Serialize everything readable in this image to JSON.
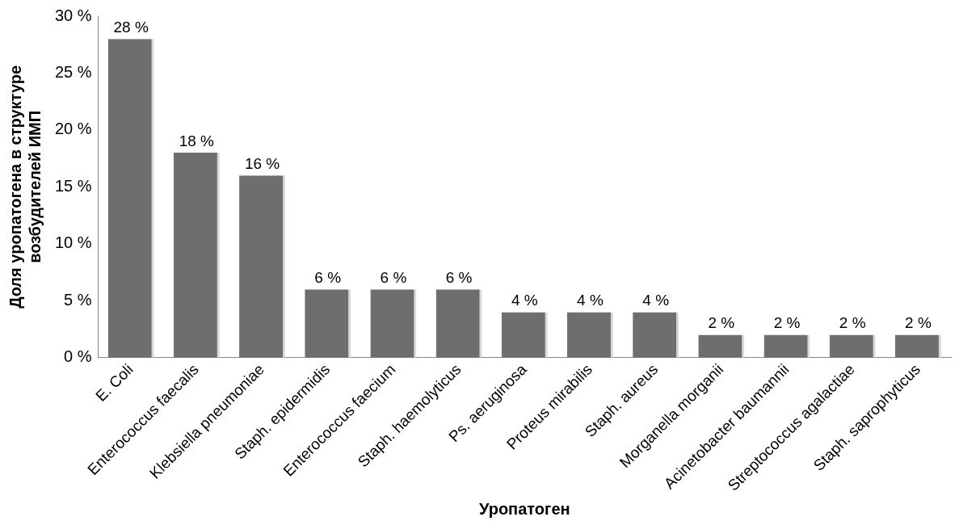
{
  "chart_data": {
    "type": "bar",
    "xlabel": "Уропатоген",
    "ylabel": "Доля уропатогена в структуре возбудителей ИМП",
    "categories": [
      "E. Coli",
      "Enterococcus faecalis",
      "Klebsiella pneumoniae",
      "Staph. epidermidis",
      "Enterococcus faecium",
      "Staph. haemolyticus",
      "Ps. aeruginosa",
      "Proteus mirabilis",
      "Staph. aureus",
      "Morganella morganii",
      "Acinetobacter baumannii",
      "Streptococcus agalactiae",
      "Staph. saprophyticus"
    ],
    "values": [
      28,
      18,
      16,
      6,
      6,
      6,
      4,
      4,
      4,
      2,
      2,
      2,
      2
    ],
    "value_labels": [
      "28 %",
      "18 %",
      "16 %",
      "6 %",
      "6 %",
      "6 %",
      "4 %",
      "4 %",
      "4 %",
      "2 %",
      "2 %",
      "2 %",
      "2 %"
    ],
    "color": "#6e6e6e",
    "ylim": [
      0,
      30
    ],
    "yticks": [
      {
        "value": 0,
        "label": "0 %"
      },
      {
        "value": 5,
        "label": "5 %"
      },
      {
        "value": 10,
        "label": "10 %"
      },
      {
        "value": 15,
        "label": "15 %"
      },
      {
        "value": 20,
        "label": "20 %"
      },
      {
        "value": 25,
        "label": "25 %"
      },
      {
        "value": 30,
        "label": "30 %"
      }
    ],
    "grid": false,
    "legend": false
  }
}
